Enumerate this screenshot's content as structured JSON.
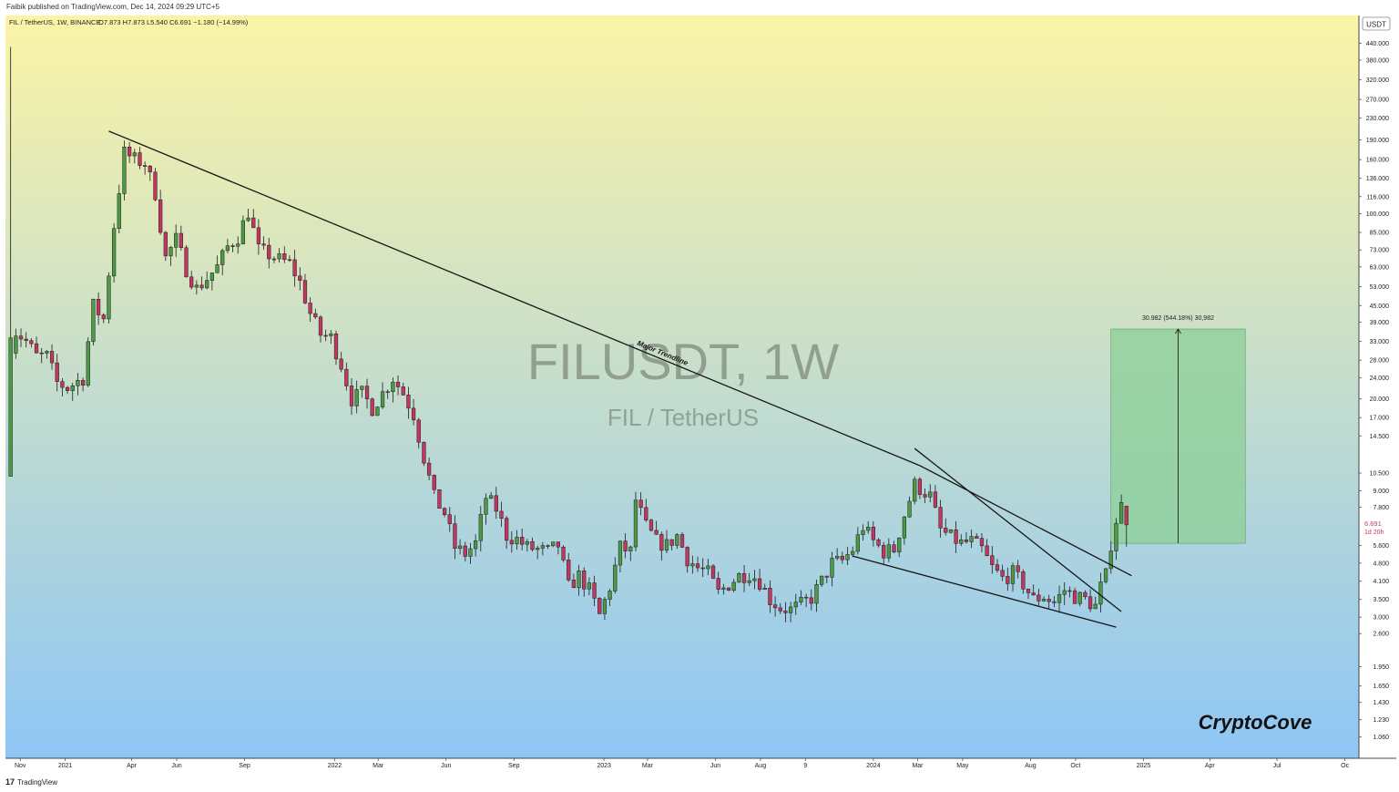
{
  "publisher_line": "Faibik published on TradingView.com, Dec 14, 2024 09:29 UTC+5",
  "footer": {
    "logo_glyph": "17",
    "brand": "TradingView"
  },
  "colors": {
    "bg_top": "#fbf4a6",
    "bg_bottom": "#8ec6f5",
    "up": "#4c9a45",
    "down": "#c2375f",
    "target_box": "#8fcf9a",
    "text": "#222222"
  },
  "chart_data": {
    "type": "candlestick",
    "symbol_header": "FIL / TetherUS, 1W, BINANCE",
    "ohlc_header": "O7.873  H7.873  L5.540  C6.691  −1.180 (−14.99%)",
    "watermark": "FILUSDT, 1W",
    "watermark_sub": "FIL / TetherUS",
    "currency_label": "USDT",
    "y_scale": "log",
    "ylim": [
      0.88,
      560
    ],
    "y_ticks": [
      440,
      380,
      320,
      270,
      230,
      190,
      160,
      136,
      116,
      100,
      85,
      73,
      63,
      53,
      45,
      39,
      33,
      28,
      24,
      20,
      17,
      14.5,
      10.5,
      9,
      7.8,
      5.6,
      4.8,
      4.1,
      3.5,
      3,
      2.6,
      1.95,
      1.65,
      1.43,
      1.23,
      1.06
    ],
    "y_tick_labels": [
      "440.000",
      "380.000",
      "320.000",
      "270.000",
      "230.000",
      "190.000",
      "160.000",
      "136.000",
      "116.000",
      "100.000",
      "85.000",
      "73.000",
      "63.000",
      "53.000",
      "45.000",
      "39.000",
      "33.000",
      "28.000",
      "24.000",
      "20.000",
      "17.000",
      "14.500",
      "10.500",
      "9.000",
      "7.800",
      "5.600",
      "4.800",
      "4.100",
      "3.500",
      "3.000",
      "2.600",
      "1.950",
      "1.650",
      "1.430",
      "1.230",
      "1.060"
    ],
    "last_price": 6.691,
    "last_price_label": "6.691",
    "countdown_label": "1d 20h",
    "x_range": [
      "2020-10-12",
      "2025-10-20"
    ],
    "x_ticks": [
      {
        "date": "2020-11-01",
        "label": "Nov"
      },
      {
        "date": "2021-01-01",
        "label": "2021"
      },
      {
        "date": "2021-04-01",
        "label": "Apr"
      },
      {
        "date": "2021-06-01",
        "label": "Jun"
      },
      {
        "date": "2021-09-01",
        "label": "Sep"
      },
      {
        "date": "2022-01-01",
        "label": "2022"
      },
      {
        "date": "2022-03-01",
        "label": "Mar"
      },
      {
        "date": "2022-06-01",
        "label": "Jun"
      },
      {
        "date": "2022-09-01",
        "label": "Sep"
      },
      {
        "date": "2023-01-01",
        "label": "2023"
      },
      {
        "date": "2023-03-01",
        "label": "Mar"
      },
      {
        "date": "2023-06-01",
        "label": "Jun"
      },
      {
        "date": "2023-08-01",
        "label": "Aug"
      },
      {
        "date": "2023-10-01",
        "label": "9"
      },
      {
        "date": "2024-01-01",
        "label": "2024"
      },
      {
        "date": "2024-03-01",
        "label": "Mar"
      },
      {
        "date": "2024-05-01",
        "label": "May"
      },
      {
        "date": "2024-08-01",
        "label": "Aug"
      },
      {
        "date": "2024-10-01",
        "label": "Oct"
      },
      {
        "date": "2025-01-01",
        "label": "2025"
      },
      {
        "date": "2025-04-01",
        "label": "Apr"
      },
      {
        "date": "2025-07-01",
        "label": "Jul"
      },
      {
        "date": "2025-10-01",
        "label": "Oc"
      }
    ],
    "price_path": [
      [
        "2020-10-19",
        32
      ],
      [
        "2020-10-26",
        36
      ],
      [
        "2020-11-09",
        33
      ],
      [
        "2020-11-23",
        29
      ],
      [
        "2020-12-07",
        29
      ],
      [
        "2020-12-21",
        23
      ],
      [
        "2021-01-04",
        22
      ],
      [
        "2021-01-25",
        24
      ],
      [
        "2021-02-08",
        45
      ],
      [
        "2021-02-22",
        40
      ],
      [
        "2021-03-08",
        90
      ],
      [
        "2021-03-22",
        170
      ],
      [
        "2021-04-05",
        160
      ],
      [
        "2021-04-19",
        155
      ],
      [
        "2021-05-03",
        120
      ],
      [
        "2021-05-17",
        68
      ],
      [
        "2021-05-31",
        80
      ],
      [
        "2021-06-14",
        62
      ],
      [
        "2021-06-28",
        52
      ],
      [
        "2021-07-12",
        57
      ],
      [
        "2021-07-26",
        63
      ],
      [
        "2021-08-09",
        75
      ],
      [
        "2021-08-23",
        82
      ],
      [
        "2021-09-06",
        102
      ],
      [
        "2021-09-20",
        73
      ],
      [
        "2021-10-04",
        70
      ],
      [
        "2021-10-18",
        67
      ],
      [
        "2021-11-01",
        65
      ],
      [
        "2021-11-15",
        55
      ],
      [
        "2021-11-29",
        42
      ],
      [
        "2021-12-13",
        35
      ],
      [
        "2021-12-27",
        34
      ],
      [
        "2022-01-10",
        27
      ],
      [
        "2022-01-24",
        20
      ],
      [
        "2022-02-07",
        21
      ],
      [
        "2022-02-21",
        18.5
      ],
      [
        "2022-03-07",
        21
      ],
      [
        "2022-03-21",
        24
      ],
      [
        "2022-04-04",
        21
      ],
      [
        "2022-04-18",
        17.5
      ],
      [
        "2022-05-02",
        12
      ],
      [
        "2022-05-16",
        8.5
      ],
      [
        "2022-05-30",
        7.4
      ],
      [
        "2022-06-13",
        5.5
      ],
      [
        "2022-06-27",
        5.2
      ],
      [
        "2022-07-11",
        5.7
      ],
      [
        "2022-07-25",
        8.5
      ],
      [
        "2022-08-08",
        7.7
      ],
      [
        "2022-08-22",
        6.1
      ],
      [
        "2022-09-05",
        5.9
      ],
      [
        "2022-09-19",
        5.5
      ],
      [
        "2022-10-03",
        5.4
      ],
      [
        "2022-10-17",
        5.3
      ],
      [
        "2022-10-31",
        5.6
      ],
      [
        "2022-11-14",
        3.9
      ],
      [
        "2022-11-28",
        4.3
      ],
      [
        "2022-12-12",
        3.8
      ],
      [
        "2022-12-26",
        3.05
      ],
      [
        "2023-01-09",
        3.9
      ],
      [
        "2023-01-23",
        5.5
      ],
      [
        "2023-02-06",
        5.3
      ],
      [
        "2023-02-13",
        8.3
      ],
      [
        "2023-02-27",
        6.6
      ],
      [
        "2023-03-13",
        5.8
      ],
      [
        "2023-03-27",
        5.6
      ],
      [
        "2023-04-10",
        6.1
      ],
      [
        "2023-04-24",
        5.0
      ],
      [
        "2023-05-08",
        4.6
      ],
      [
        "2023-05-22",
        4.4
      ],
      [
        "2023-06-05",
        3.7
      ],
      [
        "2023-06-19",
        4.0
      ],
      [
        "2023-07-03",
        4.3
      ],
      [
        "2023-07-17",
        4.4
      ],
      [
        "2023-07-31",
        4.1
      ],
      [
        "2023-08-14",
        3.5
      ],
      [
        "2023-08-28",
        3.25
      ],
      [
        "2023-09-11",
        3.2
      ],
      [
        "2023-09-25",
        3.35
      ],
      [
        "2023-10-09",
        3.55
      ],
      [
        "2023-10-23",
        4.1
      ],
      [
        "2023-11-06",
        4.8
      ],
      [
        "2023-11-20",
        4.9
      ],
      [
        "2023-12-04",
        5.4
      ],
      [
        "2023-12-18",
        6.6
      ],
      [
        "2024-01-01",
        5.8
      ],
      [
        "2024-01-15",
        5.3
      ],
      [
        "2024-01-29",
        5.4
      ],
      [
        "2024-02-12",
        7.3
      ],
      [
        "2024-02-26",
        9.5
      ],
      [
        "2024-03-04",
        9.2
      ],
      [
        "2024-03-18",
        8.6
      ],
      [
        "2024-04-01",
        6.4
      ],
      [
        "2024-04-15",
        6.0
      ],
      [
        "2024-04-29",
        5.7
      ],
      [
        "2024-05-13",
        5.8
      ],
      [
        "2024-05-27",
        5.4
      ],
      [
        "2024-06-10",
        4.6
      ],
      [
        "2024-06-24",
        4.2
      ],
      [
        "2024-07-08",
        4.4
      ],
      [
        "2024-07-22",
        4.0
      ],
      [
        "2024-08-05",
        3.5
      ],
      [
        "2024-08-19",
        3.6
      ],
      [
        "2024-09-02",
        3.4
      ],
      [
        "2024-09-16",
        3.8
      ],
      [
        "2024-09-30",
        3.6
      ],
      [
        "2024-10-14",
        3.5
      ],
      [
        "2024-10-28",
        3.3
      ],
      [
        "2024-11-04",
        3.9
      ],
      [
        "2024-11-11",
        4.3
      ],
      [
        "2024-11-18",
        5.7
      ],
      [
        "2024-11-25",
        7.0
      ],
      [
        "2024-12-02",
        7.9
      ]
    ],
    "spike_candles": [
      {
        "date": "2020-10-19",
        "o": 10.2,
        "h": 426,
        "l": 10.2,
        "c": 34
      }
    ],
    "final_candle": {
      "date": "2024-12-09",
      "o": 7.873,
      "h": 7.873,
      "l": 5.54,
      "c": 6.691
    },
    "trendlines": [
      {
        "name": "Major Trendline",
        "points": [
          [
            "2021-03-01",
            205
          ],
          [
            "2024-03-04",
            11.2
          ]
        ]
      },
      {
        "name": "",
        "points": [
          [
            "2024-03-04",
            11.2
          ],
          [
            "2024-12-16",
            4.3
          ]
        ]
      },
      {
        "name": "",
        "points": [
          [
            "2024-02-26",
            13.0
          ],
          [
            "2024-12-02",
            3.15
          ]
        ]
      },
      {
        "name": "",
        "points": [
          [
            "2023-12-04",
            5.1
          ],
          [
            "2024-11-25",
            2.75
          ]
        ]
      }
    ],
    "trendline_label": "Major Trendline",
    "target_box": {
      "x_start": "2024-11-18",
      "x_end": "2025-05-19",
      "y_low": 5.7,
      "y_high": 36.7,
      "label": "30.982 (544.18%) 30,982"
    },
    "signature": "CryptoCove"
  }
}
